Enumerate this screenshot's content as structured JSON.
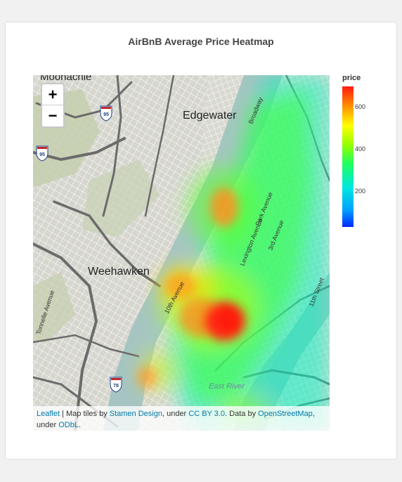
{
  "title": "AirBnB Average Price Heatmap",
  "map": {
    "labels": {
      "moonachie": "Moonachie",
      "edgewater": "Edgewater",
      "weehawken": "Weehawken",
      "tonnelle": "Tonnelle Avenue",
      "east_river": "East River",
      "broadway": "Broadway",
      "park_ave": "Park Avenue",
      "third_ave": "3rd Avenue",
      "lex_ave": "Lexington Avenue",
      "eleventh_st": "11th Street",
      "tenth_ave": "10th Avenue",
      "i95_a": "95",
      "i95_b": "95",
      "i78": "78"
    },
    "zoom": {
      "in": "+",
      "out": "−"
    },
    "attribution": {
      "leaflet": "Leaflet",
      "sep": " | Map tiles by ",
      "stamen": "Stamen Design",
      "under1": ", under ",
      "ccby": "CC BY 3.0",
      "databy": ". Data by ",
      "osm": "OpenStreetMap",
      "under2": ", under ",
      "odbl": "ODbL",
      "end": "."
    }
  },
  "legend": {
    "title": "price",
    "ticks": [
      {
        "label": "600",
        "value": 600
      },
      {
        "label": "400",
        "value": 400
      },
      {
        "label": "200",
        "value": 200
      }
    ]
  },
  "colors": {
    "water": "#a6c5c2",
    "land": "#d8d8d2",
    "park": "#c4cfae",
    "road": "#ffffff",
    "highway": "#6b6b6b",
    "link": "#0078a8"
  }
}
